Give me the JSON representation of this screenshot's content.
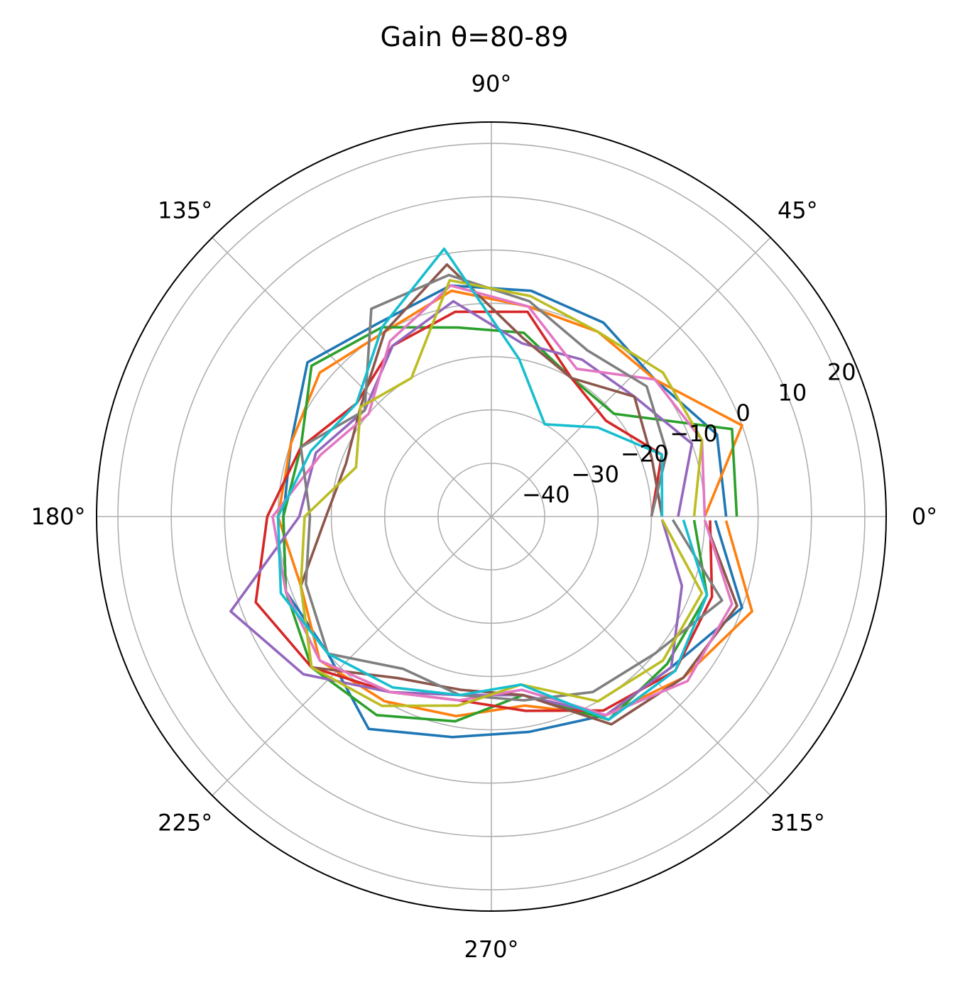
{
  "chart_data": {
    "type": "line",
    "projection": "polar",
    "title": "Gain θ=80-89",
    "angle_unit": "degrees",
    "r_lim": [
      -50,
      24
    ],
    "r_ticks": [
      -40,
      -30,
      -20,
      -10,
      0,
      10,
      20
    ],
    "r_tick_labels": [
      "−40",
      "−30",
      "−20",
      "−10",
      "0",
      "10",
      "20"
    ],
    "theta_ticks": [
      0,
      45,
      90,
      135,
      180,
      225,
      270,
      315
    ],
    "theta_tick_labels": [
      "0°",
      "45°",
      "90°",
      "135°",
      "180°",
      "225°",
      "270°",
      "315°"
    ],
    "grid": true,
    "legend": "none",
    "x": [
      0,
      20,
      40,
      60,
      80,
      100,
      120,
      140,
      160,
      180,
      200,
      220,
      240,
      260,
      280,
      300,
      320,
      340,
      359
    ],
    "series": [
      {
        "color": "#1f77b4",
        "values": [
          -6,
          -5,
          -10,
          -8,
          -7,
          -6,
          -8,
          -5,
          -10,
          -11,
          -9,
          -10,
          -4,
          -8,
          -9,
          -7,
          -6,
          0,
          -8
        ]
      },
      {
        "color": "#ff7f0e",
        "values": [
          -10,
          0,
          -10,
          -10,
          -10,
          -7,
          -10,
          -8,
          -10,
          -10,
          -12,
          -8,
          -10,
          -12,
          -14,
          -7,
          -3,
          2,
          -6
        ]
      },
      {
        "color": "#2ca02c",
        "values": [
          -4,
          -2,
          -20,
          -20,
          -15,
          -14,
          -9,
          -6,
          -12,
          -11,
          -9,
          -6,
          -7,
          -11,
          -16,
          -6,
          -7,
          -7,
          -12
        ]
      },
      {
        "color": "#d62728",
        "values": [
          -20,
          -16,
          -22,
          -20,
          -11,
          -11,
          -13,
          -17,
          -12,
          -8,
          -3,
          -6,
          -12,
          -15,
          -13,
          -8,
          -5,
          -6,
          -9
        ]
      },
      {
        "color": "#9467bd",
        "values": [
          -15,
          -10,
          -15,
          -16,
          -17,
          -9,
          -13,
          -19,
          -15,
          -14,
          2,
          -4,
          -12,
          -16,
          -16,
          -7,
          -6,
          -12,
          -18
        ]
      },
      {
        "color": "#8c564b",
        "values": [
          -18,
          -18,
          -15,
          -20,
          -16,
          -2,
          -10,
          -18,
          -21,
          -19,
          -12,
          -6,
          -15,
          -17,
          -16,
          -5,
          -3,
          -1,
          -10
        ]
      },
      {
        "color": "#e377c2",
        "values": [
          -10,
          -8,
          -10,
          -18,
          -10,
          -6,
          -12,
          -20,
          -16,
          -9,
          -9,
          -8,
          -12,
          -15,
          -17,
          -7,
          -2,
          -2,
          -10
        ]
      },
      {
        "color": "#7f7f7f",
        "values": [
          -20,
          -15,
          -12,
          -14,
          -9,
          -4,
          -5,
          -19,
          -12,
          -16,
          -13,
          -10,
          -17,
          -16,
          -15,
          -12,
          -10,
          -4,
          -16
        ]
      },
      {
        "color": "#bcbd22",
        "values": [
          -12,
          -8,
          -8,
          -10,
          -8,
          -5,
          -20,
          -18,
          -23,
          -15,
          -12,
          -6,
          -9,
          -14,
          -18,
          -10,
          -8,
          -8,
          -18
        ]
      },
      {
        "color": "#17becf",
        "values": [
          -18,
          -16,
          -24,
          -30,
          -20,
          1,
          -9,
          -17,
          -14,
          -10,
          -8,
          -10,
          -13,
          -16,
          -18,
          -6,
          -5,
          -7,
          -14
        ]
      }
    ]
  }
}
